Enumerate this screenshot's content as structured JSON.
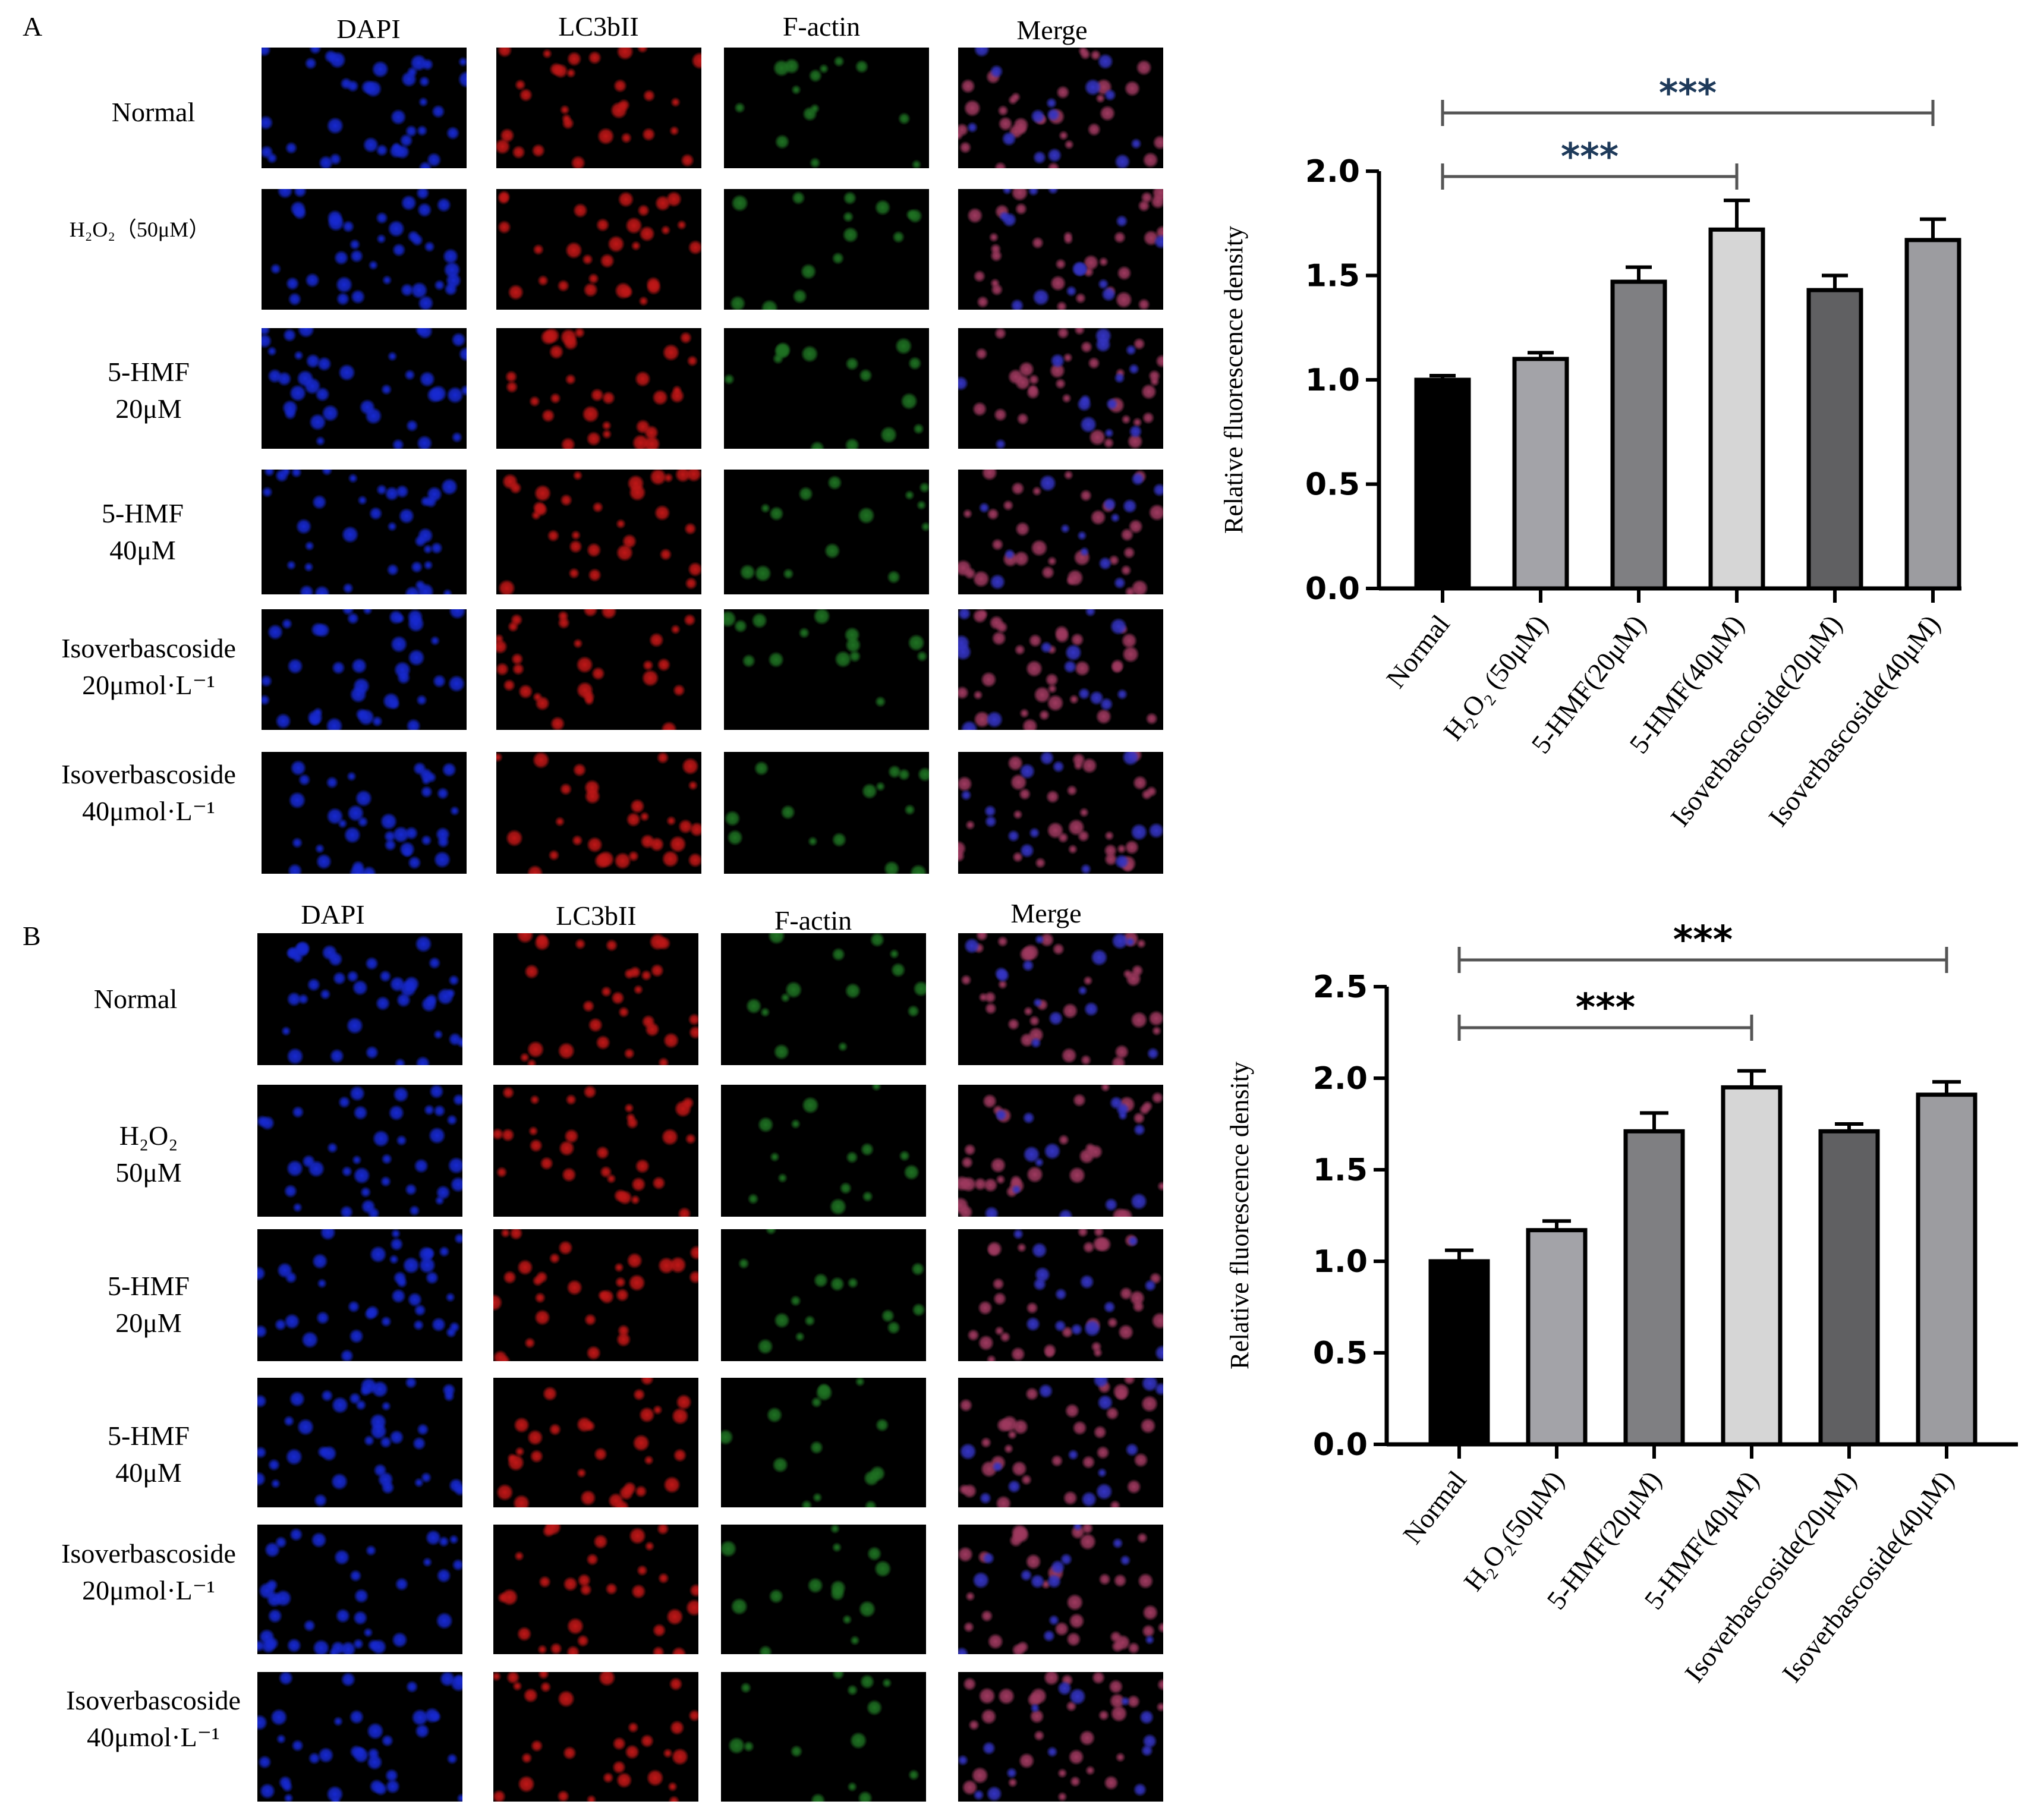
{
  "panels": [
    {
      "letter": "A",
      "columns": [
        "DAPI",
        "LC3bII",
        "F-actin",
        "Merge"
      ],
      "rows": [
        {
          "line1": "Normal",
          "line2": ""
        },
        {
          "line1": "H₂O₂（50μM）",
          "line2": ""
        },
        {
          "line1": "5-HMF",
          "line2": "20μM"
        },
        {
          "line1": "5-HMF",
          "line2": "40μM"
        },
        {
          "line1": "Isoverbascoside",
          "line2": "20μmol·L⁻¹"
        },
        {
          "line1": "Isoverbascoside",
          "line2": "40μmol·L⁻¹"
        }
      ]
    },
    {
      "letter": "B",
      "columns": [
        "DAPI",
        "LC3bII",
        "F-actin",
        "Merge"
      ],
      "rows": [
        {
          "line1": "Normal",
          "line2": ""
        },
        {
          "line1": "H₂O₂",
          "line2": "50μM"
        },
        {
          "line1": "5-HMF",
          "line2": "20μM"
        },
        {
          "line1": "5-HMF",
          "line2": "40μM"
        },
        {
          "line1": "Isoverbascoside",
          "line2": "20μmol·L⁻¹"
        },
        {
          "line1": "Isoverbascoside",
          "line2": "40μmol·L⁻¹"
        }
      ]
    }
  ],
  "stain_colors": {
    "DAPI": "#1a2ee8",
    "LC3bII": "#d41a1a",
    "F-actin": "#2fae35",
    "Merge": "#b0406a"
  },
  "chart_data": [
    {
      "type": "bar",
      "ylabel": "Relative fluorescence density",
      "categories": [
        "Normal",
        "H₂O₂ (50μM)",
        "5-HMF(20μM)",
        "5-HMF(40μM)",
        "Isoverbascoside(20μM)",
        "Isoverbascoside(40μM)"
      ],
      "values": [
        1.0,
        1.1,
        1.47,
        1.72,
        1.43,
        1.67
      ],
      "errors": [
        0.02,
        0.03,
        0.07,
        0.14,
        0.07,
        0.1
      ],
      "bar_colors": [
        "#000000",
        "#a3a3a8",
        "#7f7f82",
        "#d6d6d6",
        "#606062",
        "#9c9ca0"
      ],
      "ylim": [
        0,
        2.0
      ],
      "yticks": [
        "0.0",
        "0.5",
        "1.0",
        "1.5",
        "2.0"
      ],
      "significance": [
        {
          "from": 0,
          "to": 5,
          "label": "***"
        },
        {
          "from": 0,
          "to": 3,
          "label": "***"
        }
      ]
    },
    {
      "type": "bar",
      "ylabel": "Relative fluorescence density",
      "categories": [
        "Normal",
        "H₂O₂(50μM)",
        "5-HMF(20μM)",
        "5-HMF(40μM)",
        "Isoverbascoside(20μM)",
        "Isoverbascoside(40μM)"
      ],
      "values": [
        1.0,
        1.17,
        1.71,
        1.95,
        1.71,
        1.91
      ],
      "errors": [
        0.06,
        0.05,
        0.1,
        0.09,
        0.04,
        0.07
      ],
      "bar_colors": [
        "#000000",
        "#a3a3a8",
        "#7f7f82",
        "#d6d6d6",
        "#606062",
        "#9c9ca0"
      ],
      "ylim": [
        0,
        2.5
      ],
      "yticks": [
        "0.0",
        "0.5",
        "1.0",
        "1.5",
        "2.0",
        "2.5"
      ],
      "significance": [
        {
          "from": 0,
          "to": 5,
          "label": "***"
        },
        {
          "from": 0,
          "to": 3,
          "label": "***"
        }
      ]
    }
  ]
}
